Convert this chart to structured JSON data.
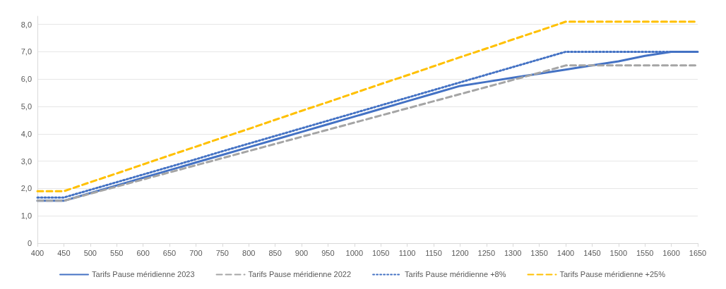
{
  "chart_data": {
    "type": "line",
    "categories": [
      "400",
      "450",
      "500",
      "550",
      "600",
      "650",
      "700",
      "750",
      "800",
      "850",
      "900",
      "950",
      "1000",
      "1050",
      "1100",
      "1150",
      "1200",
      "1250",
      "1300",
      "1350",
      "1400",
      "1450",
      "1500",
      "1550",
      "1600",
      "1650"
    ],
    "series": [
      {
        "name": "Tarifs Pause méridienne 2023",
        "color": "#4472c4",
        "line_style": "solid",
        "values": [
          1.55,
          1.55,
          1.83,
          2.11,
          2.39,
          2.67,
          2.95,
          3.23,
          3.51,
          3.79,
          4.07,
          4.35,
          4.63,
          4.91,
          5.19,
          5.47,
          5.75,
          5.9,
          6.05,
          6.2,
          6.35,
          6.5,
          6.65,
          6.85,
          7.0,
          7.0
        ]
      },
      {
        "name": "Tarifs Pause méridienne 2022",
        "color": "#a5a5a5",
        "line_style": "dashed",
        "values": [
          1.55,
          1.55,
          1.81,
          2.07,
          2.33,
          2.59,
          2.85,
          3.11,
          3.37,
          3.63,
          3.89,
          4.15,
          4.41,
          4.67,
          4.93,
          5.19,
          5.45,
          5.71,
          5.97,
          6.23,
          6.5,
          6.5,
          6.5,
          6.5,
          6.5,
          6.5
        ]
      },
      {
        "name": "Tarifs Pause méridienne +8%",
        "color": "#4472c4",
        "line_style": "dotted",
        "values": [
          1.67,
          1.67,
          1.95,
          2.23,
          2.51,
          2.79,
          3.07,
          3.36,
          3.64,
          3.92,
          4.2,
          4.48,
          4.76,
          5.04,
          5.32,
          5.6,
          5.88,
          6.16,
          6.44,
          6.72,
          7.0,
          7.0,
          7.0,
          7.0,
          7.0,
          7.0
        ]
      },
      {
        "name": "Tarifs Pause méridienne +25%",
        "color": "#ffc000",
        "line_style": "dashed",
        "values": [
          1.9,
          1.9,
          2.23,
          2.55,
          2.88,
          3.21,
          3.53,
          3.86,
          4.18,
          4.51,
          4.84,
          5.16,
          5.49,
          5.82,
          6.14,
          6.47,
          6.8,
          7.12,
          7.45,
          7.77,
          8.1,
          8.1,
          8.1,
          8.1,
          8.1,
          8.1
        ]
      }
    ],
    "ylim": [
      0,
      8.3
    ],
    "yticks": [
      {
        "value": 0,
        "label": "0"
      },
      {
        "value": 1,
        "label": "1,0"
      },
      {
        "value": 2,
        "label": "2,0"
      },
      {
        "value": 3,
        "label": "3,0"
      },
      {
        "value": 4,
        "label": "4,0"
      },
      {
        "value": 5,
        "label": "5,0"
      },
      {
        "value": 6,
        "label": "6,0"
      },
      {
        "value": 7,
        "label": "7,0"
      },
      {
        "value": 8,
        "label": "8,0"
      }
    ],
    "grid": "y",
    "legend": "bottom",
    "marker": "none"
  }
}
